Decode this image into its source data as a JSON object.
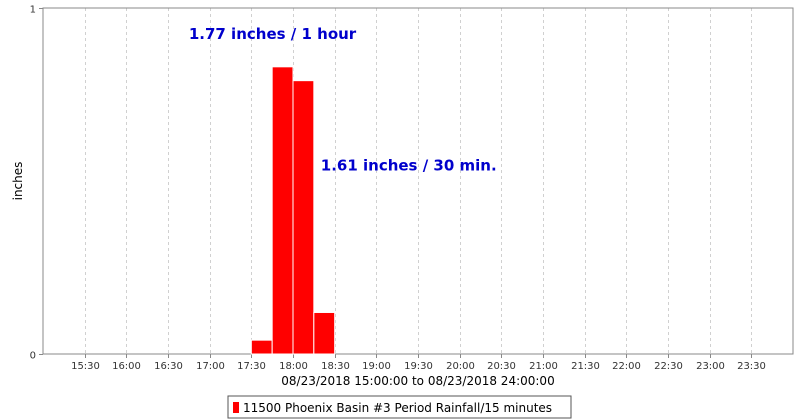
{
  "chart_data": {
    "type": "bar",
    "xlabel": "08/23/2018 15:00:00 to 08/23/2018 24:00:00",
    "ylabel": "inches",
    "ylim": [
      0,
      1
    ],
    "y_ticks": [
      "0",
      "1"
    ],
    "x_ticks": [
      "15:30",
      "16:00",
      "16:30",
      "17:00",
      "17:30",
      "18:00",
      "18:30",
      "19:00",
      "19:30",
      "20:00",
      "20:30",
      "21:00",
      "21:30",
      "22:00",
      "22:30",
      "23:00",
      "23:30"
    ],
    "x_start": "15:00",
    "x_end": "24:00",
    "bar_interval_minutes": 15,
    "categories": [
      "17:30",
      "17:45",
      "18:00",
      "18:15"
    ],
    "series": [
      {
        "name": "11500 Phoenix Basin #3 Period Rainfall/15 minutes",
        "color": "#ff0000",
        "values": [
          0.04,
          0.83,
          0.79,
          0.12
        ]
      }
    ],
    "annotations": [
      {
        "text": "1.77 inches / 1 hour",
        "x": "16:45",
        "y": 0.91
      },
      {
        "text": "1.61 inches / 30 min.",
        "x": "18:20",
        "y": 0.53
      }
    ],
    "grid": {
      "vertical": true,
      "horizontal": false,
      "style": "dashed"
    },
    "legend": {
      "position": "bottom-center"
    }
  }
}
